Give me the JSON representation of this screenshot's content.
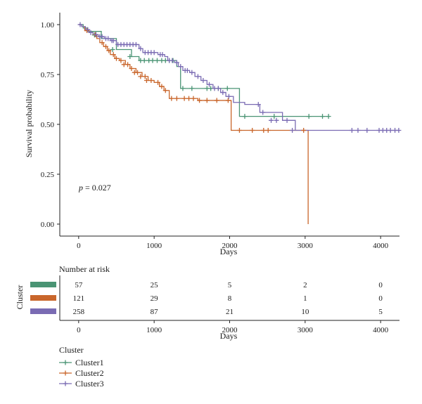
{
  "chart_data": [
    {
      "type": "line",
      "subtype": "kaplan-meier",
      "xlabel": "Days",
      "ylabel": "Survival probability",
      "xlim": [
        -250,
        4250
      ],
      "ylim": [
        -0.06,
        1.06
      ],
      "x_ticks": [
        "0",
        "1000",
        "2000",
        "3000",
        "4000"
      ],
      "y_ticks": [
        "0.00",
        "0.25",
        "0.50",
        "0.75",
        "1.00"
      ],
      "annotation_italic": "p",
      "annotation_rest": " = 0.027",
      "colors": {
        "Cluster1": "#4a9474",
        "Cluster2": "#c9662b",
        "Cluster3": "#7a6bb3"
      },
      "series": [
        {
          "name": "Cluster1",
          "color": "#4a9474",
          "steps": [
            [
              0,
              1.0
            ],
            [
              60,
              0.983
            ],
            [
              120,
              0.966
            ],
            [
              300,
              0.93
            ],
            [
              500,
              0.875
            ],
            [
              700,
              0.84
            ],
            [
              800,
              0.82
            ],
            [
              1200,
              0.82
            ],
            [
              1300,
              0.79
            ],
            [
              1350,
              0.68
            ],
            [
              2000,
              0.68
            ],
            [
              2130,
              0.54
            ],
            [
              3300,
              0.54
            ]
          ],
          "censors": [
            [
              210,
              0.948
            ],
            [
              450,
              0.875
            ],
            [
              680,
              0.84
            ],
            [
              820,
              0.82
            ],
            [
              870,
              0.82
            ],
            [
              930,
              0.82
            ],
            [
              980,
              0.82
            ],
            [
              1040,
              0.82
            ],
            [
              1100,
              0.82
            ],
            [
              1150,
              0.82
            ],
            [
              1200,
              0.82
            ],
            [
              1250,
              0.82
            ],
            [
              1380,
              0.68
            ],
            [
              1500,
              0.68
            ],
            [
              1700,
              0.68
            ],
            [
              1750,
              0.68
            ],
            [
              1850,
              0.68
            ],
            [
              1970,
              0.68
            ],
            [
              2200,
              0.54
            ],
            [
              2590,
              0.54
            ],
            [
              3050,
              0.54
            ],
            [
              3230,
              0.54
            ],
            [
              3310,
              0.54
            ]
          ]
        },
        {
          "name": "Cluster2",
          "color": "#c9662b",
          "steps": [
            [
              0,
              1.0
            ],
            [
              40,
              0.99
            ],
            [
              80,
              0.97
            ],
            [
              140,
              0.96
            ],
            [
              190,
              0.95
            ],
            [
              240,
              0.93
            ],
            [
              280,
              0.91
            ],
            [
              330,
              0.89
            ],
            [
              380,
              0.87
            ],
            [
              420,
              0.85
            ],
            [
              480,
              0.83
            ],
            [
              540,
              0.82
            ],
            [
              620,
              0.8
            ],
            [
              680,
              0.78
            ],
            [
              760,
              0.76
            ],
            [
              840,
              0.74
            ],
            [
              920,
              0.72
            ],
            [
              1000,
              0.71
            ],
            [
              1070,
              0.69
            ],
            [
              1130,
              0.67
            ],
            [
              1200,
              0.63
            ],
            [
              1580,
              0.62
            ],
            [
              2020,
              0.47
            ],
            [
              3040,
              0.0
            ]
          ],
          "censors": [
            [
              110,
              0.97
            ],
            [
              220,
              0.95
            ],
            [
              310,
              0.91
            ],
            [
              360,
              0.89
            ],
            [
              400,
              0.87
            ],
            [
              460,
              0.85
            ],
            [
              500,
              0.83
            ],
            [
              560,
              0.82
            ],
            [
              600,
              0.8
            ],
            [
              650,
              0.8
            ],
            [
              700,
              0.78
            ],
            [
              740,
              0.76
            ],
            [
              780,
              0.76
            ],
            [
              820,
              0.74
            ],
            [
              880,
              0.74
            ],
            [
              900,
              0.72
            ],
            [
              960,
              0.72
            ],
            [
              1050,
              0.71
            ],
            [
              1100,
              0.69
            ],
            [
              1150,
              0.67
            ],
            [
              1230,
              0.63
            ],
            [
              1300,
              0.63
            ],
            [
              1400,
              0.63
            ],
            [
              1460,
              0.63
            ],
            [
              1520,
              0.63
            ],
            [
              1600,
              0.62
            ],
            [
              1700,
              0.62
            ],
            [
              1830,
              0.62
            ],
            [
              1980,
              0.62
            ],
            [
              2130,
              0.47
            ],
            [
              2300,
              0.47
            ],
            [
              2450,
              0.47
            ],
            [
              2510,
              0.47
            ],
            [
              2980,
              0.47
            ]
          ]
        },
        {
          "name": "Cluster3",
          "color": "#7a6bb3",
          "steps": [
            [
              0,
              1.0
            ],
            [
              40,
              0.99
            ],
            [
              90,
              0.975
            ],
            [
              140,
              0.96
            ],
            [
              190,
              0.95
            ],
            [
              260,
              0.94
            ],
            [
              340,
              0.93
            ],
            [
              420,
              0.92
            ],
            [
              500,
              0.9
            ],
            [
              800,
              0.88
            ],
            [
              850,
              0.86
            ],
            [
              1050,
              0.85
            ],
            [
              1140,
              0.84
            ],
            [
              1180,
              0.82
            ],
            [
              1270,
              0.81
            ],
            [
              1320,
              0.79
            ],
            [
              1380,
              0.77
            ],
            [
              1470,
              0.76
            ],
            [
              1540,
              0.74
            ],
            [
              1620,
              0.72
            ],
            [
              1700,
              0.7
            ],
            [
              1780,
              0.68
            ],
            [
              1880,
              0.66
            ],
            [
              1950,
              0.64
            ],
            [
              2050,
              0.61
            ],
            [
              2200,
              0.6
            ],
            [
              2400,
              0.56
            ],
            [
              2700,
              0.52
            ],
            [
              2870,
              0.47
            ],
            [
              4250,
              0.47
            ]
          ],
          "censors": [
            [
              20,
              1.0
            ],
            [
              120,
              0.975
            ],
            [
              160,
              0.96
            ],
            [
              230,
              0.95
            ],
            [
              280,
              0.94
            ],
            [
              310,
              0.94
            ],
            [
              360,
              0.93
            ],
            [
              390,
              0.93
            ],
            [
              440,
              0.92
            ],
            [
              460,
              0.92
            ],
            [
              520,
              0.9
            ],
            [
              560,
              0.9
            ],
            [
              600,
              0.9
            ],
            [
              640,
              0.9
            ],
            [
              680,
              0.9
            ],
            [
              720,
              0.9
            ],
            [
              760,
              0.9
            ],
            [
              820,
              0.88
            ],
            [
              880,
              0.86
            ],
            [
              920,
              0.86
            ],
            [
              960,
              0.86
            ],
            [
              1000,
              0.86
            ],
            [
              1080,
              0.85
            ],
            [
              1110,
              0.85
            ],
            [
              1200,
              0.82
            ],
            [
              1240,
              0.82
            ],
            [
              1300,
              0.81
            ],
            [
              1350,
              0.79
            ],
            [
              1410,
              0.77
            ],
            [
              1440,
              0.77
            ],
            [
              1500,
              0.76
            ],
            [
              1580,
              0.74
            ],
            [
              1650,
              0.72
            ],
            [
              1730,
              0.7
            ],
            [
              1800,
              0.68
            ],
            [
              1850,
              0.68
            ],
            [
              1910,
              0.66
            ],
            [
              1990,
              0.64
            ],
            [
              2380,
              0.6
            ],
            [
              2440,
              0.56
            ],
            [
              2550,
              0.52
            ],
            [
              2620,
              0.52
            ],
            [
              2760,
              0.52
            ],
            [
              2830,
              0.47
            ],
            [
              3620,
              0.47
            ],
            [
              3700,
              0.47
            ],
            [
              3820,
              0.47
            ],
            [
              3980,
              0.47
            ],
            [
              4030,
              0.47
            ],
            [
              4080,
              0.47
            ],
            [
              4130,
              0.47
            ],
            [
              4190,
              0.47
            ],
            [
              4240,
              0.47
            ]
          ]
        }
      ]
    },
    {
      "type": "table",
      "title": "Number at risk",
      "row_axis_label": "Cluster",
      "xlabel": "Days",
      "x_ticks": [
        "0",
        "1000",
        "2000",
        "3000",
        "4000"
      ],
      "rows": [
        {
          "name": "Cluster1",
          "color": "#4a9474",
          "values": [
            "57",
            "25",
            "5",
            "2",
            "0"
          ]
        },
        {
          "name": "Cluster2",
          "color": "#c9662b",
          "values": [
            "121",
            "29",
            "8",
            "1",
            "0"
          ]
        },
        {
          "name": "Cluster3",
          "color": "#7a6bb3",
          "values": [
            "258",
            "87",
            "21",
            "10",
            "5"
          ]
        }
      ]
    }
  ],
  "legend": {
    "title": "Cluster",
    "items": [
      {
        "label": "Cluster1",
        "color": "#4a9474"
      },
      {
        "label": "Cluster2",
        "color": "#c9662b"
      },
      {
        "label": "Cluster3",
        "color": "#7a6bb3"
      }
    ]
  }
}
